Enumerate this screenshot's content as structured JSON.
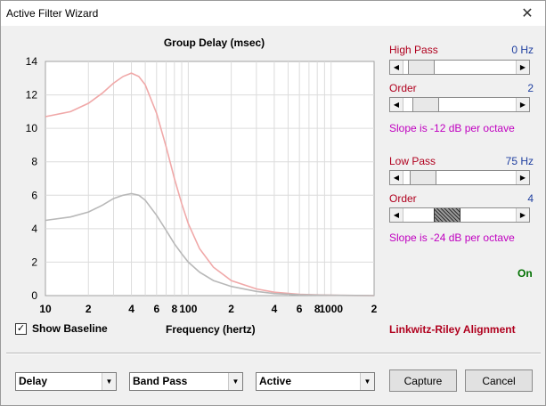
{
  "window": {
    "title": "Active Filter Wizard",
    "close_glyph": "✕"
  },
  "chart_data": {
    "type": "line",
    "title": "Group Delay (msec)",
    "xlabel": "Frequency (hertz)",
    "x_scale": "log",
    "xlim": [
      10,
      2000
    ],
    "ylim": [
      0,
      14
    ],
    "y_ticks": [
      0,
      2,
      4,
      6,
      8,
      10,
      12,
      14
    ],
    "x_tick_labels": [
      {
        "x": 10,
        "label": "10"
      },
      {
        "x": 20,
        "label": "2"
      },
      {
        "x": 40,
        "label": "4"
      },
      {
        "x": 60,
        "label": "6"
      },
      {
        "x": 80,
        "label": "8"
      },
      {
        "x": 100,
        "label": "100"
      },
      {
        "x": 200,
        "label": "2"
      },
      {
        "x": 400,
        "label": "4"
      },
      {
        "x": 600,
        "label": "6"
      },
      {
        "x": 800,
        "label": "8"
      },
      {
        "x": 1000,
        "label": "1000"
      },
      {
        "x": 2000,
        "label": "2"
      }
    ],
    "grid": true,
    "series": [
      {
        "color": "#f0a8a8",
        "x": [
          10,
          15,
          20,
          25,
          30,
          35,
          40,
          45,
          50,
          60,
          70,
          80,
          90,
          100,
          120,
          150,
          200,
          300,
          400,
          600,
          800,
          1000,
          1500,
          2000
        ],
        "y": [
          10.7,
          11.0,
          11.5,
          12.1,
          12.7,
          13.1,
          13.3,
          13.1,
          12.6,
          10.9,
          8.9,
          7.0,
          5.5,
          4.3,
          2.8,
          1.7,
          0.9,
          0.4,
          0.2,
          0.08,
          0.04,
          0.02,
          0.01,
          0.0
        ]
      },
      {
        "color": "#b8b8b8",
        "x": [
          10,
          15,
          20,
          25,
          30,
          35,
          40,
          45,
          50,
          60,
          70,
          80,
          90,
          100,
          120,
          150,
          200,
          300,
          400,
          600,
          800,
          1000,
          1500,
          2000
        ],
        "y": [
          4.5,
          4.7,
          5.0,
          5.4,
          5.8,
          6.0,
          6.1,
          6.0,
          5.7,
          4.8,
          3.9,
          3.1,
          2.5,
          2.0,
          1.4,
          0.9,
          0.55,
          0.25,
          0.12,
          0.05,
          0.03,
          0.02,
          0.01,
          0.0
        ]
      }
    ]
  },
  "show_baseline": {
    "label": "Show Baseline",
    "checked": true,
    "check_glyph": "✓"
  },
  "high_pass": {
    "label": "High Pass",
    "value": "0 Hz",
    "level": 0.05
  },
  "high_pass_order": {
    "label": "Order",
    "value": "2",
    "level": 0.1,
    "slope_text": "Slope is -12 dB per octave"
  },
  "low_pass": {
    "label": "Low Pass",
    "value": "75 Hz",
    "level": 0.07
  },
  "low_pass_order": {
    "label": "Order",
    "value": "4",
    "level": 0.35,
    "slope_text": "Slope is -24 dB per octave"
  },
  "status": {
    "on": "On",
    "alignment": "Linkwitz-Riley Alignment"
  },
  "bottom": {
    "combo1": "Delay",
    "combo2": "Band Pass",
    "combo3": "Active",
    "capture": "Capture",
    "cancel": "Cancel",
    "arrow_left": "◀",
    "arrow_right": "▶",
    "arrow_down": "▼"
  }
}
